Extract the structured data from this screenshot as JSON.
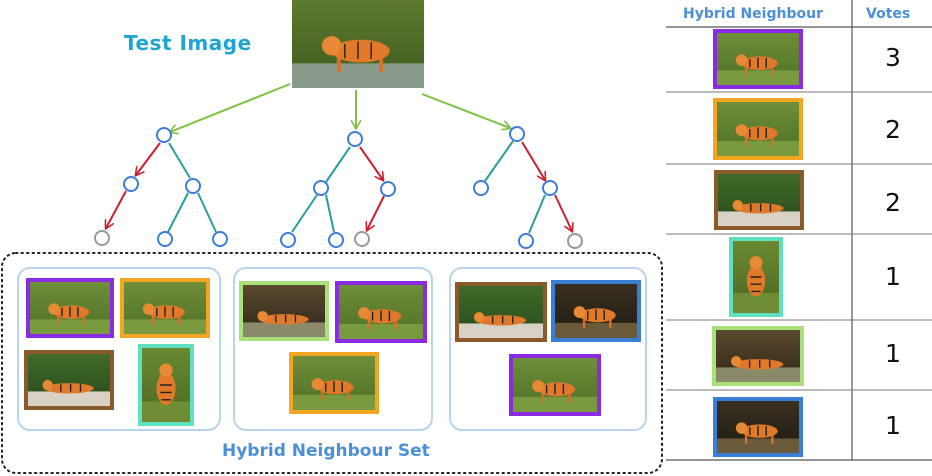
{
  "test_image_label": "Test Image",
  "neighbour_set_label": "Hybrid Neighbour Set",
  "table": {
    "header_neighbour": "Hybrid Neighbour",
    "header_votes": "Votes",
    "rows": [
      {
        "frame_color": "#8a2be2",
        "votes": "3",
        "scene": "walking-grass"
      },
      {
        "frame_color": "#f4a623",
        "votes": "2",
        "scene": "walking-grass"
      },
      {
        "frame_color": "#8b5a2b",
        "votes": "2",
        "scene": "lying-sand"
      },
      {
        "frame_color": "#5fe0c0",
        "votes": "1",
        "scene": "standing-grass"
      },
      {
        "frame_color": "#a8e07a",
        "votes": "1",
        "scene": "lying-shade"
      },
      {
        "frame_color": "#3a7fd5",
        "votes": "1",
        "scene": "walking-dark"
      }
    ]
  },
  "colors": {
    "label_cyan": "#1fa5d0",
    "label_blue": "#4a90d9",
    "tree_edge": "#2a9d9d",
    "path_edge": "#cc1f2f",
    "query_arrow": "#7dc242",
    "node_stroke": "#3b7dd8",
    "leaf_stroke": "#999999",
    "group_border": "#b8d4ee",
    "table_line": "#555555"
  }
}
